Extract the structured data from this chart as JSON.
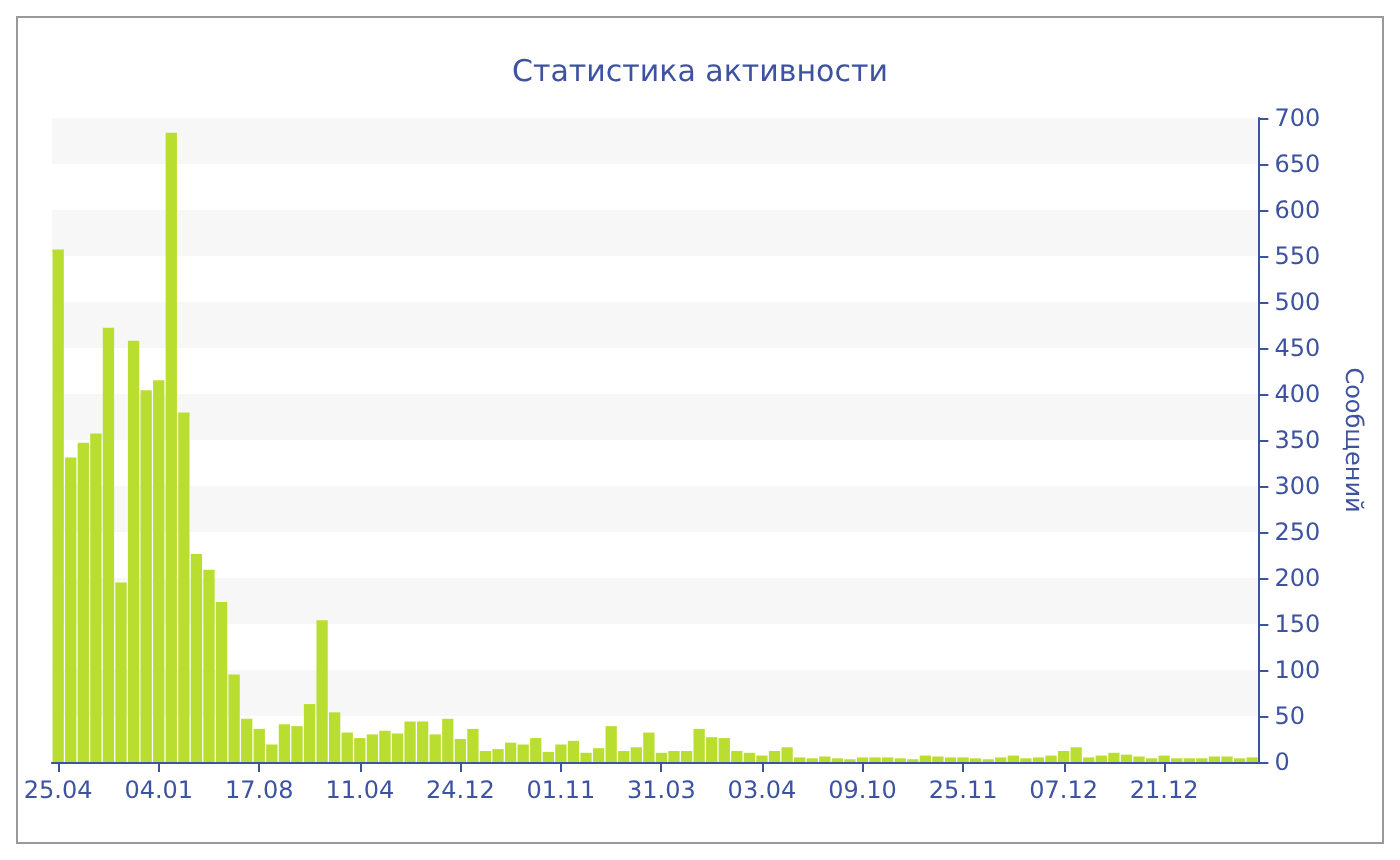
{
  "chart_data": {
    "type": "bar",
    "title": "Статистика активности",
    "ylabel": "Сообщений",
    "color": "#bade30",
    "categories": [
      "25.04",
      null,
      null,
      null,
      null,
      null,
      null,
      null,
      "04.01",
      null,
      null,
      null,
      null,
      null,
      null,
      null,
      "17.08",
      null,
      null,
      null,
      null,
      null,
      null,
      null,
      "11.04",
      null,
      null,
      null,
      null,
      null,
      null,
      null,
      "24.12",
      null,
      null,
      null,
      null,
      null,
      null,
      null,
      "01.11",
      null,
      null,
      null,
      null,
      null,
      null,
      null,
      "31.03",
      null,
      null,
      null,
      null,
      null,
      null,
      null,
      "03.04",
      null,
      null,
      null,
      null,
      null,
      null,
      null,
      "09.10",
      null,
      null,
      null,
      null,
      null,
      null,
      null,
      "25.11",
      null,
      null,
      null,
      null,
      null,
      null,
      null,
      "07.12",
      null,
      null,
      null,
      null,
      null,
      null,
      null,
      "21.12",
      null,
      null,
      null,
      null,
      null,
      null,
      null
    ],
    "values": [
      557,
      331,
      347,
      357,
      472,
      195,
      458,
      404,
      415,
      684,
      380,
      226,
      209,
      174,
      95,
      47,
      36,
      19,
      41,
      39,
      63,
      154,
      54,
      32,
      26,
      30,
      34,
      31,
      44,
      44,
      30,
      47,
      25,
      36,
      12,
      14,
      21,
      19,
      26,
      11,
      19,
      23,
      10,
      15,
      39,
      12,
      16,
      32,
      10,
      12,
      12,
      36,
      27,
      26,
      12,
      10,
      7,
      12,
      16,
      5,
      4,
      6,
      4,
      3,
      5,
      5,
      5,
      4,
      3,
      7,
      6,
      5,
      5,
      4,
      3,
      5,
      7,
      4,
      5,
      7,
      12,
      16,
      5,
      7,
      10,
      8,
      6,
      4,
      7,
      4,
      4,
      4,
      6,
      6,
      4,
      5
    ],
    "ylim": [
      0,
      700
    ],
    "yticks": [
      0,
      50,
      100,
      150,
      200,
      250,
      300,
      350,
      400,
      450,
      500,
      550,
      600,
      650,
      700
    ]
  }
}
